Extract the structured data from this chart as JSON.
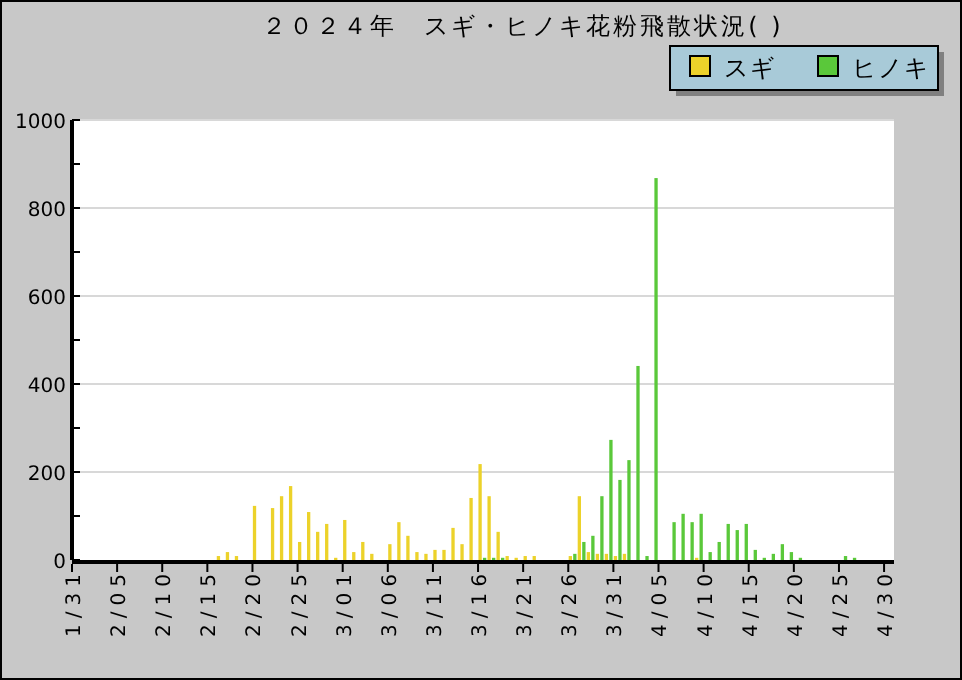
{
  "chart_data": {
    "type": "bar",
    "title": "２０２４年　スギ・ヒノキ花粉飛散状況( )",
    "categories": [
      "1/31",
      null,
      null,
      null,
      null,
      "2/05",
      null,
      null,
      null,
      null,
      "2/10",
      null,
      null,
      null,
      null,
      "2/15",
      null,
      null,
      null,
      null,
      "2/20",
      null,
      null,
      null,
      null,
      "2/25",
      null,
      null,
      null,
      null,
      "3/01",
      null,
      null,
      null,
      null,
      "3/06",
      null,
      null,
      null,
      null,
      "3/11",
      null,
      null,
      null,
      null,
      "3/16",
      null,
      null,
      null,
      null,
      "3/21",
      null,
      null,
      null,
      null,
      "3/26",
      null,
      null,
      null,
      null,
      "3/31",
      null,
      null,
      null,
      null,
      "4/05",
      null,
      null,
      null,
      null,
      "4/10",
      null,
      null,
      null,
      null,
      "4/15",
      null,
      null,
      null,
      null,
      "4/20",
      null,
      null,
      null,
      null,
      "4/25",
      null,
      null,
      null,
      null,
      "4/30"
    ],
    "series": [
      {
        "name": "スギ",
        "color": "#ecd22a",
        "values": [
          0,
          0,
          0,
          0,
          0,
          0,
          0,
          0,
          0,
          0,
          0,
          0,
          0,
          0,
          0,
          0,
          9,
          18,
          9,
          0,
          123,
          0,
          118,
          145,
          168,
          41,
          109,
          64,
          82,
          5,
          91,
          18,
          41,
          14,
          0,
          36,
          86,
          55,
          18,
          14,
          23,
          23,
          73,
          36,
          141,
          218,
          145,
          64,
          9,
          5,
          9,
          9,
          0,
          0,
          0,
          9,
          145,
          18,
          14,
          14,
          9,
          14,
          0,
          0,
          0,
          0,
          0,
          0,
          0,
          5,
          0,
          0,
          0,
          0,
          0,
          0,
          0,
          0,
          0,
          0,
          0,
          0,
          0,
          0,
          0,
          0,
          0,
          0,
          0,
          0,
          0
        ]
      },
      {
        "name": "ヒノキ",
        "color": "#5ac83a",
        "values": [
          0,
          0,
          0,
          0,
          0,
          0,
          0,
          0,
          0,
          0,
          0,
          0,
          0,
          0,
          0,
          0,
          0,
          0,
          0,
          0,
          0,
          0,
          0,
          0,
          0,
          0,
          0,
          0,
          0,
          0,
          0,
          0,
          0,
          0,
          0,
          0,
          0,
          0,
          0,
          0,
          0,
          0,
          0,
          0,
          0,
          5,
          5,
          5,
          0,
          0,
          0,
          0,
          0,
          0,
          0,
          14,
          41,
          55,
          145,
          273,
          182,
          227,
          441,
          9,
          868,
          0,
          86,
          105,
          86,
          105,
          18,
          41,
          82,
          68,
          82,
          23,
          5,
          14,
          36,
          18,
          5,
          0,
          0,
          0,
          0,
          9,
          5,
          0,
          0,
          0,
          0
        ]
      }
    ],
    "ylim": [
      0,
      1000
    ],
    "yticks": [
      0,
      {
        "value": 100,
        "label": null
      },
      200,
      {
        "value": 300,
        "label": null
      },
      400,
      {
        "value": 500,
        "label": null
      },
      600,
      {
        "value": 700,
        "label": null
      },
      800,
      {
        "value": 900,
        "label": null
      },
      1000
    ],
    "grid": "y",
    "legend": "top right"
  }
}
